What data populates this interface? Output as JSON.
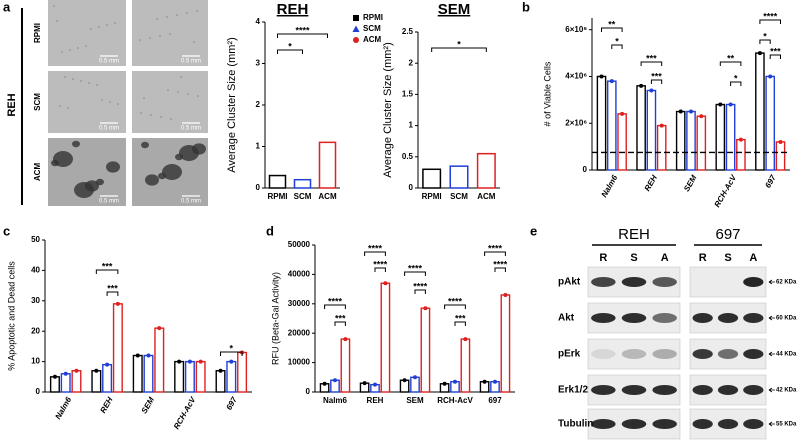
{
  "panel_labels": [
    "a",
    "b",
    "c",
    "d",
    "e"
  ],
  "micrographs": {
    "cell_line": "REH",
    "rows": [
      "RPMI",
      "SCM",
      "ACM"
    ],
    "scale_bar": "0.5 mm"
  },
  "chart_data": [
    {
      "type": "bar",
      "title": "REH",
      "ylabel": "Average Cluster Size (mm²)",
      "categories": [
        "RPMI",
        "SCM",
        "ACM"
      ],
      "values": [
        0.3,
        0.2,
        1.1
      ],
      "colors": [
        "#000000",
        "#1f3fd6",
        "#e02020"
      ],
      "ylim": [
        0,
        4
      ],
      "yticks": [
        0,
        1,
        2,
        3,
        4
      ],
      "legend": true,
      "annotations": [
        "*",
        "****"
      ]
    },
    {
      "type": "bar",
      "title": "SEM",
      "ylabel": "Average Cluster Size (mm²)",
      "categories": [
        "RPMI",
        "SCM",
        "ACM"
      ],
      "values": [
        0.3,
        0.35,
        0.55
      ],
      "colors": [
        "#000000",
        "#1f3fd6",
        "#e02020"
      ],
      "ylim": [
        0,
        2.5
      ],
      "yticks": [
        0,
        0.5,
        1,
        1.5,
        2,
        2.5
      ],
      "legend": false,
      "annotations": [
        "*"
      ]
    },
    {
      "type": "grouped_bar",
      "ylabel": "# of Viable Cells",
      "categories": [
        "Nalm6",
        "REH",
        "SEM",
        "RCH-AcV",
        "697"
      ],
      "series": [
        {
          "color": "#000000",
          "values": [
            4000000,
            3600000,
            2500000,
            2800000,
            5000000
          ]
        },
        {
          "color": "#1f3fd6",
          "values": [
            3800000,
            3400000,
            2500000,
            2800000,
            4000000
          ]
        },
        {
          "color": "#e02020",
          "values": [
            2400000,
            1900000,
            2300000,
            1300000,
            1200000
          ]
        }
      ],
      "ylim": [
        0,
        6500000
      ],
      "yticks": [
        0,
        {
          "value": 2000000,
          "label": "2×10⁶"
        },
        {
          "value": 4000000,
          "label": "4×10⁶"
        },
        {
          "value": 6000000,
          "label": "6×10⁶"
        }
      ],
      "reference_line": 750000,
      "annotations": [
        "**",
        "*",
        "***",
        "***",
        "**",
        "*",
        "****",
        "*",
        "***"
      ]
    },
    {
      "type": "grouped_bar",
      "ylabel": "% Apoptotic and Dead cells",
      "categories": [
        "Nalm6",
        "REH",
        "SEM",
        "RCH-AcV",
        "697"
      ],
      "series": [
        {
          "color": "#000000",
          "values": [
            5,
            7,
            12,
            10,
            7
          ]
        },
        {
          "color": "#1f3fd6",
          "values": [
            6,
            9,
            12,
            10,
            10
          ]
        },
        {
          "color": "#e02020",
          "values": [
            7,
            29,
            21,
            10,
            13
          ]
        }
      ],
      "ylim": [
        0,
        50
      ],
      "yticks": [
        0,
        10,
        20,
        30,
        40,
        50
      ],
      "annotations": [
        "***",
        "***",
        "*"
      ]
    },
    {
      "type": "grouped_bar",
      "ylabel": "RFU (Beta-Gal Activity)",
      "categories": [
        "Nalm6",
        "REH",
        "SEM",
        "RCH-AcV",
        "697"
      ],
      "series": [
        {
          "color": "#000000",
          "values": [
            2800,
            3000,
            4000,
            2800,
            3500
          ]
        },
        {
          "color": "#1f3fd6",
          "values": [
            4000,
            2500,
            5000,
            3500,
            3500
          ]
        },
        {
          "color": "#e02020",
          "values": [
            18000,
            37000,
            28500,
            18000,
            33000
          ]
        }
      ],
      "ylim": [
        0,
        50000
      ],
      "yticks": [
        0,
        10000,
        20000,
        30000,
        40000,
        50000
      ],
      "annotations": [
        "****",
        "***",
        "****",
        "****",
        "****",
        "****",
        "****",
        "***",
        "****",
        "****"
      ]
    }
  ],
  "blot": {
    "groups": [
      "REH",
      "697"
    ],
    "lanes": [
      "R",
      "S",
      "A"
    ],
    "rows": [
      "pAkt",
      "Akt",
      "pErk",
      "Erk1/2",
      "Tubulin"
    ],
    "sizes": [
      "62 KDa",
      "60 KDa",
      "44 KDa",
      "42 KDa",
      "55 KDa"
    ]
  }
}
